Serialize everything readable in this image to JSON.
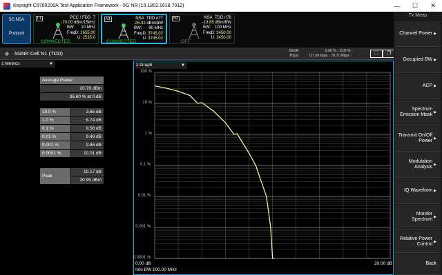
{
  "window": {
    "title": "Keysight C8700200A Test Application Framework - 5G NR (15.1802.1618.7012)",
    "minimize": "—",
    "maximize": "☐",
    "close": "✕"
  },
  "mode": {
    "name": "5G NSA",
    "sub": "Protocol"
  },
  "carriers": [
    {
      "badge": "L1",
      "head_left": "PCC / FDD",
      "head_right": "7",
      "power": "-70.00",
      "power_unit": "dBm/15kHz",
      "bw_label": "BW:",
      "bw": "10 MHz",
      "freq_label": "Freq",
      "d_label": "D:",
      "d_value": "2655.00",
      "u_label": "U:",
      "u_value": "2535.0",
      "state": "CONNECTED"
    },
    {
      "badge": "N1",
      "head_left": "NSA",
      "head_right": "TDD n77",
      "power": "-25.32",
      "power_unit": "dBm/BW",
      "bw_label": "BW:",
      "bw": "90 MHz",
      "freq_label": "Freq",
      "d_label": "D:",
      "d_value": "3745.02",
      "u_label": "U:",
      "u_value": "3745.02",
      "state": "CONNECTED"
    },
    {
      "badge": "N2",
      "head_left": "NSA",
      "head_right": "TDD n78",
      "power": "-19.85",
      "power_unit": "dBm/BW",
      "bw_label": "BW:",
      "bw": "100 MHz",
      "freq_label": "Freq",
      "d_label": "D:",
      "d_value": "3450.00",
      "u_label": "U:",
      "u_value": "3450.00",
      "state": "OFF"
    }
  ],
  "cell": {
    "plus": "+",
    "name": "5GNR Cell N1 (TDD)",
    "bler_label": "BLER:",
    "bler_value": "0.00 % ↓ 0.00 % ↑",
    "thput_label": "Thput:",
    "thput_value": "717.60 kbps ↓ 78.71 Mbps ↑"
  },
  "metrics_panel": {
    "title": "1 Metrics",
    "avg_header": "Average Power",
    "avg_dbm": "20.78 dBm",
    "avg_pct": "36.60 % at 0 dB",
    "rows": [
      {
        "label": "10.0 %",
        "value": "3.65 dB"
      },
      {
        "label": "1.0 %",
        "value": "6.74 dB"
      },
      {
        "label": "0.1 %",
        "value": "8.58 dB"
      },
      {
        "label": "0.01 %",
        "value": "9.49 dB"
      },
      {
        "label": "0.001 %",
        "value": "9.85 dB"
      },
      {
        "label": "0.0001 %",
        "value": "10.01 dB"
      }
    ],
    "peak_label": "Peak",
    "peak_db": "10.17 dB",
    "peak_dbm": "30.95 dBm"
  },
  "graph_panel": {
    "title": "2 Graph",
    "x_start": "0.00 dB",
    "x_end": "20.00 dB",
    "info": "Info BW 100.00 MHz"
  },
  "chart_data": {
    "type": "line",
    "ylabels": [
      "100 %",
      "10 %",
      "1 %",
      "0.1 %",
      "0.01 %",
      "0.001 %",
      "0.0001 %"
    ],
    "xlim": [
      0,
      20
    ],
    "ylim": [
      0.0001,
      100
    ],
    "yscale": "log",
    "grid": true,
    "series": [
      {
        "color": "#f2ee9a",
        "x": [
          0,
          0.5,
          1,
          2,
          3,
          3.65,
          4,
          5,
          6,
          6.74,
          7,
          8,
          8.58,
          9,
          9.49,
          9.85,
          10.01,
          10.17
        ],
        "y": [
          36.6,
          33.8,
          30.8,
          24.6,
          17.9,
          10.0,
          10.6,
          5.6,
          2.4,
          1.0,
          1.05,
          0.25,
          0.1,
          0.034,
          0.01,
          0.001,
          0.0001,
          0.0001
        ]
      }
    ]
  },
  "softkeys": {
    "title": "Tx Meas",
    "items": [
      {
        "label": "Channel Power"
      },
      {
        "label": "Occupied BW"
      },
      {
        "label": "ACP"
      },
      {
        "label": "Spectrum Emission Mask"
      },
      {
        "label": "Transmit On/Off Power"
      },
      {
        "label": "Modulation Analysis"
      },
      {
        "label": "IQ Waveform"
      },
      {
        "label": "Monitor Spectrum"
      },
      {
        "label": "Relative Power Control"
      },
      {
        "label": "Back"
      }
    ]
  },
  "icons": {
    "app": "keysight-app-icon",
    "tower": "antenna-tower-icon",
    "dropdown": "chevron-down-icon"
  }
}
